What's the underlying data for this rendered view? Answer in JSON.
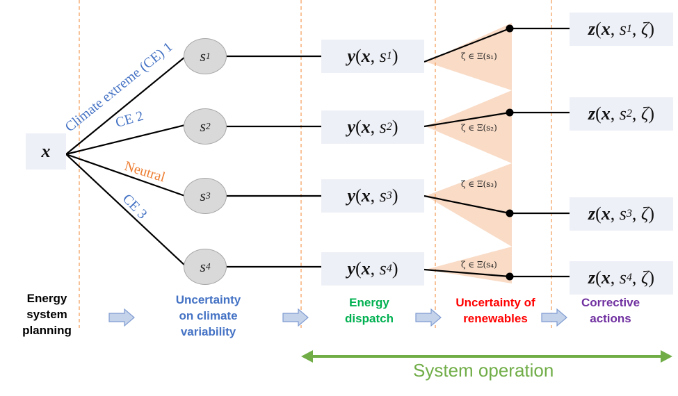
{
  "colors": {
    "box_bg": "#eef0f7",
    "dashed_divider": "#f4a261",
    "uncertainty_fan": "#f8d5bc",
    "blue": "#4472c4",
    "orange": "#ed7d31",
    "green": "#00b050",
    "red": "#ff0000",
    "purple": "#7030a0",
    "system_operation": "#70ad47",
    "arrow_fill": "#c5d3ea",
    "arrow_stroke": "#7f9bd1"
  },
  "root": {
    "var": "x"
  },
  "branches": [
    {
      "label": "Climate extreme (CE) 1",
      "color": "#4472c4"
    },
    {
      "label": "CE 2",
      "color": "#4472c4"
    },
    {
      "label": "Neutral",
      "color": "#ed7d31"
    },
    {
      "label": "CE 3",
      "color": "#4472c4"
    }
  ],
  "scenarios": [
    {
      "base": "s",
      "sub": "1"
    },
    {
      "base": "s",
      "sub": "2"
    },
    {
      "base": "s",
      "sub": "3"
    },
    {
      "base": "s",
      "sub": "4"
    }
  ],
  "dispatch": [
    {
      "fn": "y",
      "x": "x",
      "s": "s",
      "sub": "1"
    },
    {
      "fn": "y",
      "x": "x",
      "s": "s",
      "sub": "2"
    },
    {
      "fn": "y",
      "x": "x",
      "s": "s",
      "sub": "3"
    },
    {
      "fn": "y",
      "x": "x",
      "s": "s",
      "sub": "4"
    }
  ],
  "uncertainty_sets": [
    "ζ ∈ Ξ(s₁)",
    "ζ ∈ Ξ(s₂)",
    "ζ ∈ Ξ(s₃)",
    "ζ ∈ Ξ(s₄)"
  ],
  "corrective": [
    {
      "fn": "z",
      "x": "x",
      "s": "s",
      "sub": "1",
      "zeta": "ζ"
    },
    {
      "fn": "z",
      "x": "x",
      "s": "s",
      "sub": "2",
      "zeta": "ζ"
    },
    {
      "fn": "z",
      "x": "x",
      "s": "s",
      "sub": "3",
      "zeta": "ζ"
    },
    {
      "fn": "z",
      "x": "x",
      "s": "s",
      "sub": "4",
      "zeta": "ζ"
    }
  ],
  "stages": [
    {
      "lines": [
        "Energy",
        "system",
        "planning"
      ],
      "color": "#000000"
    },
    {
      "lines": [
        "Uncertainty",
        "on climate",
        "variability"
      ],
      "color": "#4472c4"
    },
    {
      "lines": [
        "Energy",
        "dispatch"
      ],
      "color": "#00b050"
    },
    {
      "lines": [
        "Uncertainty of",
        "renewables"
      ],
      "color": "#ff0000"
    },
    {
      "lines": [
        "Corrective",
        "actions"
      ],
      "color": "#7030a0"
    }
  ],
  "system_operation": "System operation"
}
